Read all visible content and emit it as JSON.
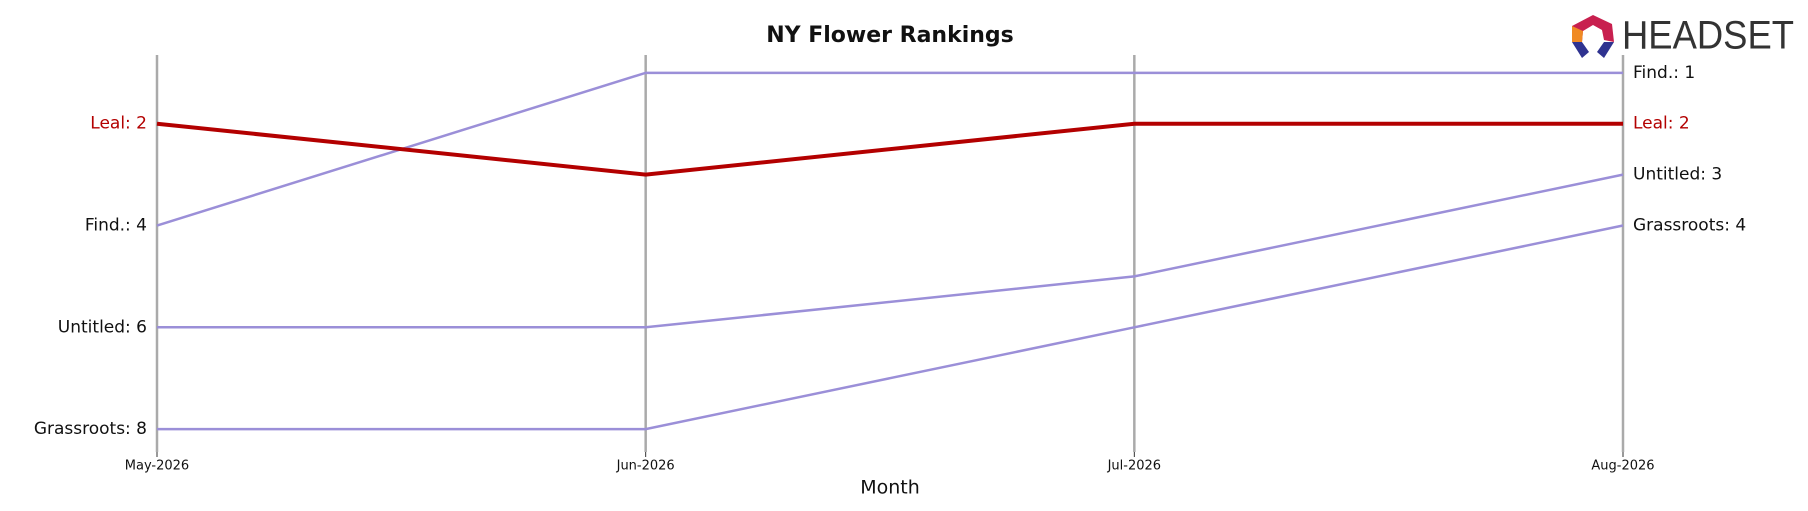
{
  "chart_data": {
    "type": "bump",
    "title": "NY Flower Rankings",
    "xlabel": "Month",
    "logo": "HEADSET",
    "categories": [
      "May-2026",
      "Jun-2026",
      "Jul-2026",
      "Aug-2026"
    ],
    "ylim": [
      8.45,
      0.65
    ],
    "grid": true,
    "series": [
      {
        "name": "Find.",
        "color": "#9b8fd8",
        "values": [
          4,
          1,
          1,
          1
        ],
        "value_labels": [
          "Find.: 4",
          null,
          null,
          "Find.: 1"
        ]
      },
      {
        "name": "Untitled",
        "color": "#9b8fd8",
        "values": [
          6,
          6,
          5,
          3
        ],
        "value_labels": [
          "Untitled: 6",
          null,
          null,
          "Untitled: 3"
        ]
      },
      {
        "name": "Grassroots",
        "color": "#9b8fd8",
        "values": [
          8,
          8,
          6,
          4
        ],
        "value_labels": [
          "Grassroots: 8",
          null,
          null,
          "Grassroots: 4"
        ]
      },
      {
        "name": "Leal",
        "color": "#b30000",
        "values": [
          2,
          3,
          2,
          2
        ],
        "value_labels": [
          "Leal: 2",
          null,
          null,
          "Leal: 2"
        ],
        "highlight": true
      }
    ]
  }
}
